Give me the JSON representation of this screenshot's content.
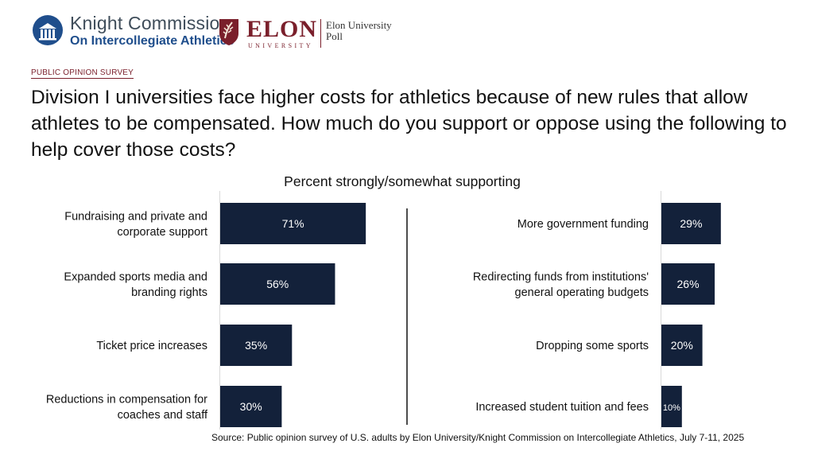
{
  "header": {
    "knight_title": "Knight Commission",
    "knight_subtitle": "On Intercollegiate Athletics",
    "elon_name": "ELON",
    "elon_university": "UNIVERSITY",
    "elon_poll_line1": "Elon University",
    "elon_poll_line2": "Poll"
  },
  "survey_tag": "PUBLIC OPINION SURVEY",
  "question": "Division I universities face higher costs for athletics because of new rules that allow athletes to be compensated. How much do you support or oppose using the following to help cover those costs?",
  "source": "Source: Public opinion survey of U.S. adults by Elon University/Knight Commission on Intercollegiate Athletics, July 7-11, 2025",
  "colors": {
    "bar": "#13213a",
    "bar_label": "#ffffff",
    "brand_blue": "#1f4e8c",
    "brand_maroon": "#7a1f2b"
  },
  "chart_data": [
    {
      "type": "bar",
      "orientation": "horizontal",
      "subtitle": "Percent strongly/somewhat supporting",
      "categories": [
        [
          "Fundraising and private and",
          "corporate support"
        ],
        [
          "Expanded sports media and",
          "branding rights"
        ],
        [
          "Ticket price increases"
        ],
        [
          "Reductions in compensation for",
          "coaches and staff"
        ]
      ],
      "values": [
        71,
        56,
        35,
        30
      ],
      "labels": [
        "71%",
        "56%",
        "35%",
        "30%"
      ],
      "xlim": [
        0,
        100
      ]
    },
    {
      "type": "bar",
      "orientation": "horizontal",
      "categories": [
        [
          "More government funding"
        ],
        [
          "Redirecting funds from institutions'",
          "general operating budgets"
        ],
        [
          "Dropping some sports"
        ],
        [
          "Increased student tuition and fees"
        ]
      ],
      "values": [
        29,
        26,
        20,
        10
      ],
      "labels": [
        "29%",
        "26%",
        "20%",
        "10%"
      ],
      "xlim": [
        0,
        100
      ]
    }
  ]
}
